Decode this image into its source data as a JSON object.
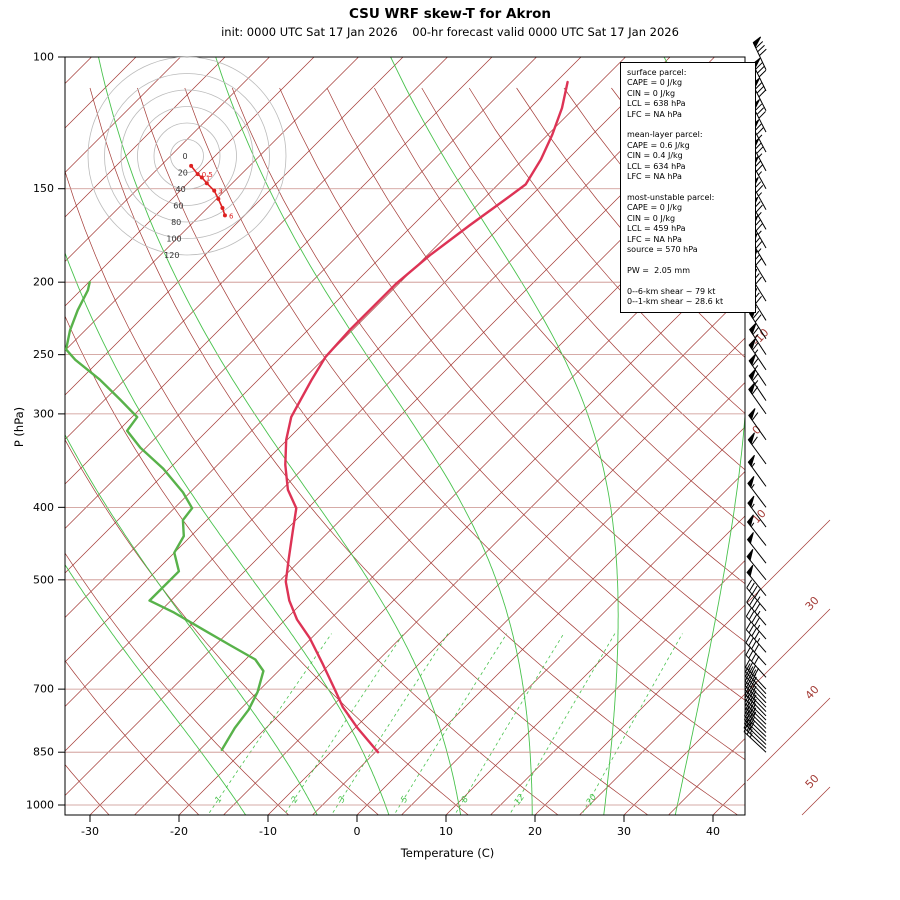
{
  "title": "CSU WRF skew-T for Akron",
  "subtitle": "init: 0000 UTC Sat 17 Jan 2026    00-hr forecast valid 0000 UTC Sat 17 Jan 2026",
  "axes": {
    "y_label": "P (hPa)",
    "x_label": "Temperature (C)",
    "pressure_ticks": [
      100,
      150,
      200,
      250,
      300,
      400,
      500,
      700,
      850,
      1000
    ],
    "temperature_ticks": [
      -30,
      -20,
      -10,
      0,
      10,
      20,
      30,
      40
    ],
    "right_isotherm_labels": [
      -10,
      0,
      10,
      30,
      40,
      50
    ]
  },
  "parcel_info_lines": [
    "surface parcel:",
    "CAPE = 0 J/kg",
    "CIN = 0 J/kg",
    "LCL = 638 hPa",
    "LFC = NA hPa",
    "",
    "mean-layer parcel:",
    "CAPE = 0.6 J/kg",
    "CIN = 0.4 J/kg",
    "LCL = 634 hPa",
    "LFC = NA hPa",
    "",
    "most-unstable parcel:",
    "CAPE = 0 J/kg",
    "CIN = 0 J/kg",
    "LCL = 459 hPa",
    "LFC = NA hPa",
    "source = 570 hPa",
    "",
    "PW =  2.05 mm",
    "",
    "0--6-km shear ~ 79 kt",
    "0--1-km shear ~ 28.6 kt"
  ],
  "hodograph": {
    "ring_labels": [
      0,
      20,
      40,
      60,
      80,
      100,
      120
    ],
    "ring_interval_kt": 20,
    "trace_kt": [
      [
        5,
        -12
      ],
      [
        13,
        -22
      ],
      [
        18,
        -26
      ],
      [
        24,
        -33
      ],
      [
        33,
        -42
      ],
      [
        38,
        -52
      ],
      [
        43,
        -63
      ],
      [
        46,
        -72
      ]
    ],
    "height_labels": [
      {
        "text": "0.5",
        "index": 1
      },
      {
        "text": "1",
        "index": 2
      },
      {
        "text": "3",
        "index": 4
      },
      {
        "text": "6",
        "index": 7
      }
    ]
  },
  "colors": {
    "isotherm": "#a33a35",
    "pressure_line": "#c98f8a",
    "moist_adiabat": "#49c24d",
    "mixing_ratio": "#49c24d",
    "temperature": "#dd3355",
    "dewpoint": "#58b24a",
    "hodograph_trace": "#dd2222",
    "hodograph_ring": "#bbbbbb",
    "barb": "#000000"
  },
  "chart_data": {
    "type": "line",
    "title": "CSU WRF skew-T for Akron",
    "xlabel": "Temperature (C)",
    "ylabel": "P (hPa)",
    "x_range_c": [
      -35,
      45
    ],
    "pressure_range_hpa": [
      100,
      1040
    ],
    "isotherm_interval_c": 5,
    "mixing_ratio_lines_gkg": [
      1,
      2,
      3,
      5,
      8,
      12,
      20
    ],
    "moist_adiabat_start_temps_c": [
      -12,
      -4,
      4,
      12,
      20,
      28,
      36,
      44
    ],
    "series": [
      {
        "name": "temperature_c",
        "color": "#dd3355",
        "points": [
          [
            850,
            -4.7
          ],
          [
            788,
            -9.8
          ],
          [
            740,
            -13.7
          ],
          [
            702,
            -16.5
          ],
          [
            648,
            -20.8
          ],
          [
            598,
            -25.2
          ],
          [
            565,
            -28.7
          ],
          [
            533,
            -31.7
          ],
          [
            503,
            -34.2
          ],
          [
            468,
            -36.5
          ],
          [
            432,
            -39
          ],
          [
            401,
            -41.3
          ],
          [
            379,
            -44.3
          ],
          [
            351,
            -47.4
          ],
          [
            325,
            -50.1
          ],
          [
            303,
            -52.1
          ],
          [
            287,
            -53
          ],
          [
            270,
            -54
          ],
          [
            252,
            -55
          ],
          [
            232,
            -55.3
          ],
          [
            214,
            -55.3
          ],
          [
            201,
            -55.3
          ],
          [
            184,
            -54.7
          ],
          [
            168,
            -53.6
          ],
          [
            155,
            -52.5
          ],
          [
            148,
            -51.9
          ],
          [
            137,
            -53
          ],
          [
            127,
            -54.5
          ],
          [
            117,
            -56.4
          ],
          [
            108,
            -58.7
          ]
        ]
      },
      {
        "name": "dewpoint_c",
        "color": "#58b24a",
        "points": [
          [
            844,
            -22.5
          ],
          [
            789,
            -23.5
          ],
          [
            746,
            -24
          ],
          [
            706,
            -25
          ],
          [
            662,
            -26.7
          ],
          [
            639,
            -28.9
          ],
          [
            611,
            -33.4
          ],
          [
            584,
            -37.9
          ],
          [
            553,
            -43.3
          ],
          [
            533,
            -47.4
          ],
          [
            508,
            -47.4
          ],
          [
            487,
            -47.4
          ],
          [
            460,
            -50
          ],
          [
            437,
            -50.8
          ],
          [
            416,
            -52.7
          ],
          [
            401,
            -53
          ],
          [
            382,
            -55.8
          ],
          [
            355,
            -60.7
          ],
          [
            333,
            -65.6
          ],
          [
            316,
            -69
          ],
          [
            303,
            -69.4
          ],
          [
            287,
            -73.3
          ],
          [
            270,
            -77.8
          ],
          [
            254,
            -82.8
          ],
          [
            246,
            -85
          ],
          [
            232,
            -86.7
          ],
          [
            218,
            -88.1
          ],
          [
            205,
            -89.2
          ],
          [
            200,
            -89.9
          ]
        ]
      }
    ],
    "winds_p_spd_dir": [
      [
        850,
        25,
        313
      ],
      [
        840,
        27,
        313
      ],
      [
        830,
        29,
        314
      ],
      [
        820,
        30,
        314
      ],
      [
        810,
        31,
        314
      ],
      [
        800,
        32,
        315
      ],
      [
        790,
        33,
        315
      ],
      [
        780,
        34,
        315
      ],
      [
        770,
        34,
        315
      ],
      [
        760,
        35,
        316
      ],
      [
        750,
        35,
        316
      ],
      [
        740,
        36,
        316
      ],
      [
        730,
        36,
        316
      ],
      [
        720,
        37,
        317
      ],
      [
        710,
        37,
        317
      ],
      [
        700,
        38,
        317
      ],
      [
        675,
        40,
        318
      ],
      [
        650,
        41,
        318
      ],
      [
        625,
        43,
        319
      ],
      [
        600,
        44,
        319
      ],
      [
        575,
        46,
        320
      ],
      [
        550,
        47,
        320
      ],
      [
        525,
        49,
        321
      ],
      [
        500,
        50,
        321
      ],
      [
        475,
        51,
        322
      ],
      [
        450,
        53,
        322
      ],
      [
        425,
        54,
        323
      ],
      [
        400,
        55,
        323
      ],
      [
        375,
        56,
        324
      ],
      [
        350,
        58,
        324
      ],
      [
        325,
        60,
        325
      ],
      [
        300,
        61,
        325
      ],
      [
        288,
        63,
        326
      ],
      [
        275,
        64,
        326
      ],
      [
        262,
        66,
        326
      ],
      [
        250,
        67,
        327
      ],
      [
        238,
        68,
        327
      ],
      [
        225,
        70,
        328
      ],
      [
        212,
        71,
        328
      ],
      [
        200,
        72,
        329
      ],
      [
        190,
        73,
        329
      ],
      [
        180,
        74,
        330
      ],
      [
        170,
        75,
        330
      ],
      [
        160,
        75,
        331
      ],
      [
        150,
        76,
        331
      ],
      [
        142,
        77,
        332
      ],
      [
        134,
        77,
        332
      ],
      [
        126,
        78,
        333
      ],
      [
        118,
        79,
        333
      ],
      [
        111,
        79,
        334
      ],
      [
        104,
        80,
        335
      ]
    ]
  }
}
